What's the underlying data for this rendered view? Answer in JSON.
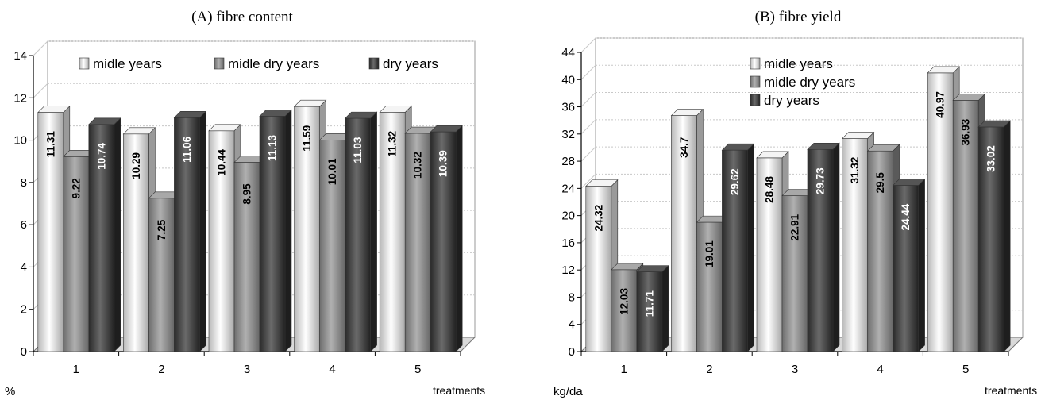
{
  "chart_data": [
    {
      "type": "bar",
      "title": "(A) fibre content",
      "ylabel": "%",
      "xlabel": "treatments",
      "categories": [
        "1",
        "2",
        "3",
        "4",
        "5"
      ],
      "ylim": [
        0,
        14
      ],
      "yticks": [
        "0",
        "2",
        "4",
        "6",
        "8",
        "10",
        "12",
        "14"
      ],
      "grid": true,
      "legend_position": "top",
      "series": [
        {
          "name": "midle years",
          "values": [
            11.31,
            10.29,
            10.44,
            11.59,
            11.32
          ],
          "labels": [
            "11.31",
            "10.29",
            "10.44",
            "11.59",
            "11.32"
          ],
          "color": "#e6e6e6"
        },
        {
          "name": "midle dry years",
          "values": [
            9.22,
            7.25,
            8.95,
            10.01,
            10.32
          ],
          "labels": [
            "9.22",
            "7.25",
            "8.95",
            "10.01",
            "10.32"
          ],
          "color": "#8c8c8c"
        },
        {
          "name": "dry years",
          "values": [
            10.74,
            11.06,
            11.13,
            11.03,
            10.39
          ],
          "labels": [
            "10.74",
            "11.06",
            "11.13",
            "11.03",
            "10.39"
          ],
          "color": "#3a3a3a"
        }
      ]
    },
    {
      "type": "bar",
      "title": "(B) fibre yield",
      "ylabel": "kg/da",
      "xlabel": "treatments",
      "categories": [
        "1",
        "2",
        "3",
        "4",
        "5"
      ],
      "ylim": [
        0,
        44
      ],
      "yticks": [
        "0",
        "4",
        "8",
        "12",
        "16",
        "20",
        "24",
        "28",
        "32",
        "36",
        "40",
        "44"
      ],
      "grid": true,
      "legend_position": "top",
      "series": [
        {
          "name": "midle years",
          "values": [
            24.32,
            34.7,
            28.48,
            31.32,
            40.97
          ],
          "labels": [
            "24.32",
            "34.7",
            "28.48",
            "31.32",
            "40.97"
          ],
          "color": "#e6e6e6"
        },
        {
          "name": "midle dry years",
          "values": [
            12.03,
            19.01,
            22.91,
            29.5,
            36.93
          ],
          "labels": [
            "12.03",
            "19.01",
            "22.91",
            "29.5",
            "36.93"
          ],
          "color": "#8c8c8c"
        },
        {
          "name": "dry years",
          "values": [
            11.71,
            29.62,
            29.73,
            24.44,
            33.02
          ],
          "labels": [
            "11.71",
            "29.62",
            "29.73",
            "24.44",
            "33.02"
          ],
          "color": "#3a3a3a"
        }
      ]
    }
  ]
}
